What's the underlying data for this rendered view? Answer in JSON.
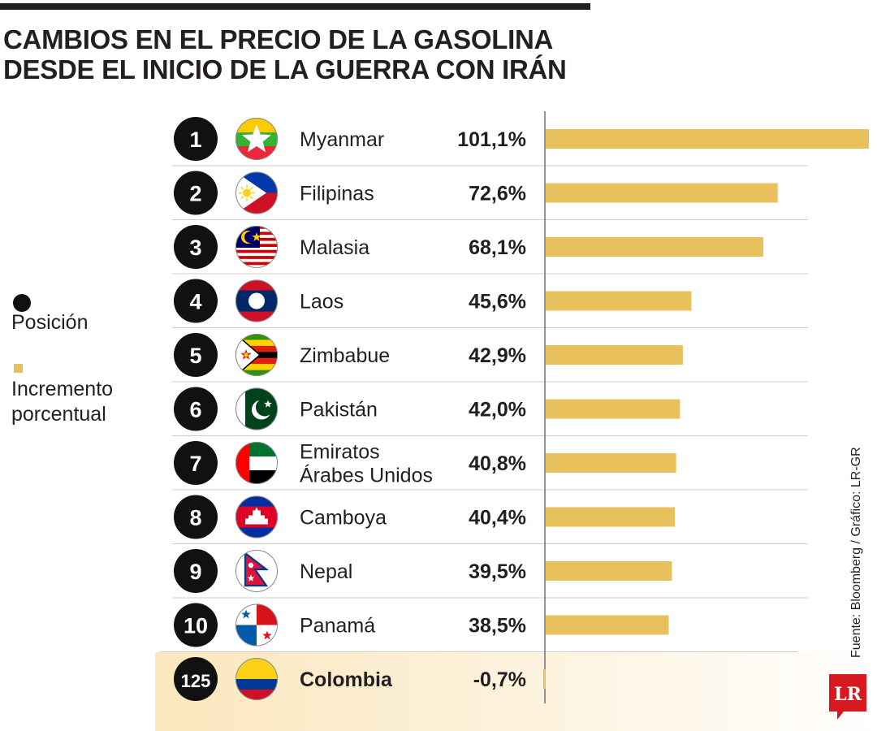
{
  "title": {
    "line1": "CAMBIOS EN EL PRECIO DE LA GASOLINA",
    "line2": "DESDE EL INICIO DE LA GUERRA CON IRÁN"
  },
  "legend": {
    "position_label": "Posición",
    "increase_label": "Incremento porcentual"
  },
  "source": "Fuente: Bloomberg / Gráfico: LR-GR",
  "logo_text": "LR",
  "colors": {
    "bar": "#e8c15c",
    "text": "#231f20",
    "rank_circle": "#111111",
    "highlight": "#fbe7bd",
    "logo": "#d71920"
  },
  "chart_data": {
    "type": "bar",
    "orientation": "horizontal",
    "value_unit": "%",
    "rows": [
      {
        "rank": "1",
        "country": "Myanmar",
        "label": "101,1%",
        "value": 101.1,
        "flag_icon": "myanmar-flag-icon"
      },
      {
        "rank": "2",
        "country": "Filipinas",
        "label": "72,6%",
        "value": 72.6,
        "flag_icon": "philippines-flag-icon"
      },
      {
        "rank": "3",
        "country": "Malasia",
        "label": "68,1%",
        "value": 68.1,
        "flag_icon": "malaysia-flag-icon"
      },
      {
        "rank": "4",
        "country": "Laos",
        "label": "45,6%",
        "value": 45.6,
        "flag_icon": "laos-flag-icon"
      },
      {
        "rank": "5",
        "country": "Zimbabue",
        "label": "42,9%",
        "value": 42.9,
        "flag_icon": "zimbabwe-flag-icon"
      },
      {
        "rank": "6",
        "country": "Pakistán",
        "label": "42,0%",
        "value": 42.0,
        "flag_icon": "pakistan-flag-icon"
      },
      {
        "rank": "7",
        "country": "Emiratos Árabes Unidos",
        "country_lines": [
          "Emiratos",
          "Árabes Unidos"
        ],
        "label": "40,8%",
        "value": 40.8,
        "flag_icon": "uae-flag-icon"
      },
      {
        "rank": "8",
        "country": "Camboya",
        "label": "40,4%",
        "value": 40.4,
        "flag_icon": "cambodia-flag-icon"
      },
      {
        "rank": "9",
        "country": "Nepal",
        "label": "39,5%",
        "value": 39.5,
        "flag_icon": "nepal-flag-icon"
      },
      {
        "rank": "10",
        "country": "Panamá",
        "label": "38,5%",
        "value": 38.5,
        "flag_icon": "panama-flag-icon"
      },
      {
        "rank": "125",
        "country": "Colombia",
        "label": "-0,7%",
        "value": -0.7,
        "flag_icon": "colombia-flag-icon",
        "highlighted": true
      }
    ],
    "xlim": [
      0,
      101.1
    ],
    "grid": false,
    "legend_position": "left"
  }
}
